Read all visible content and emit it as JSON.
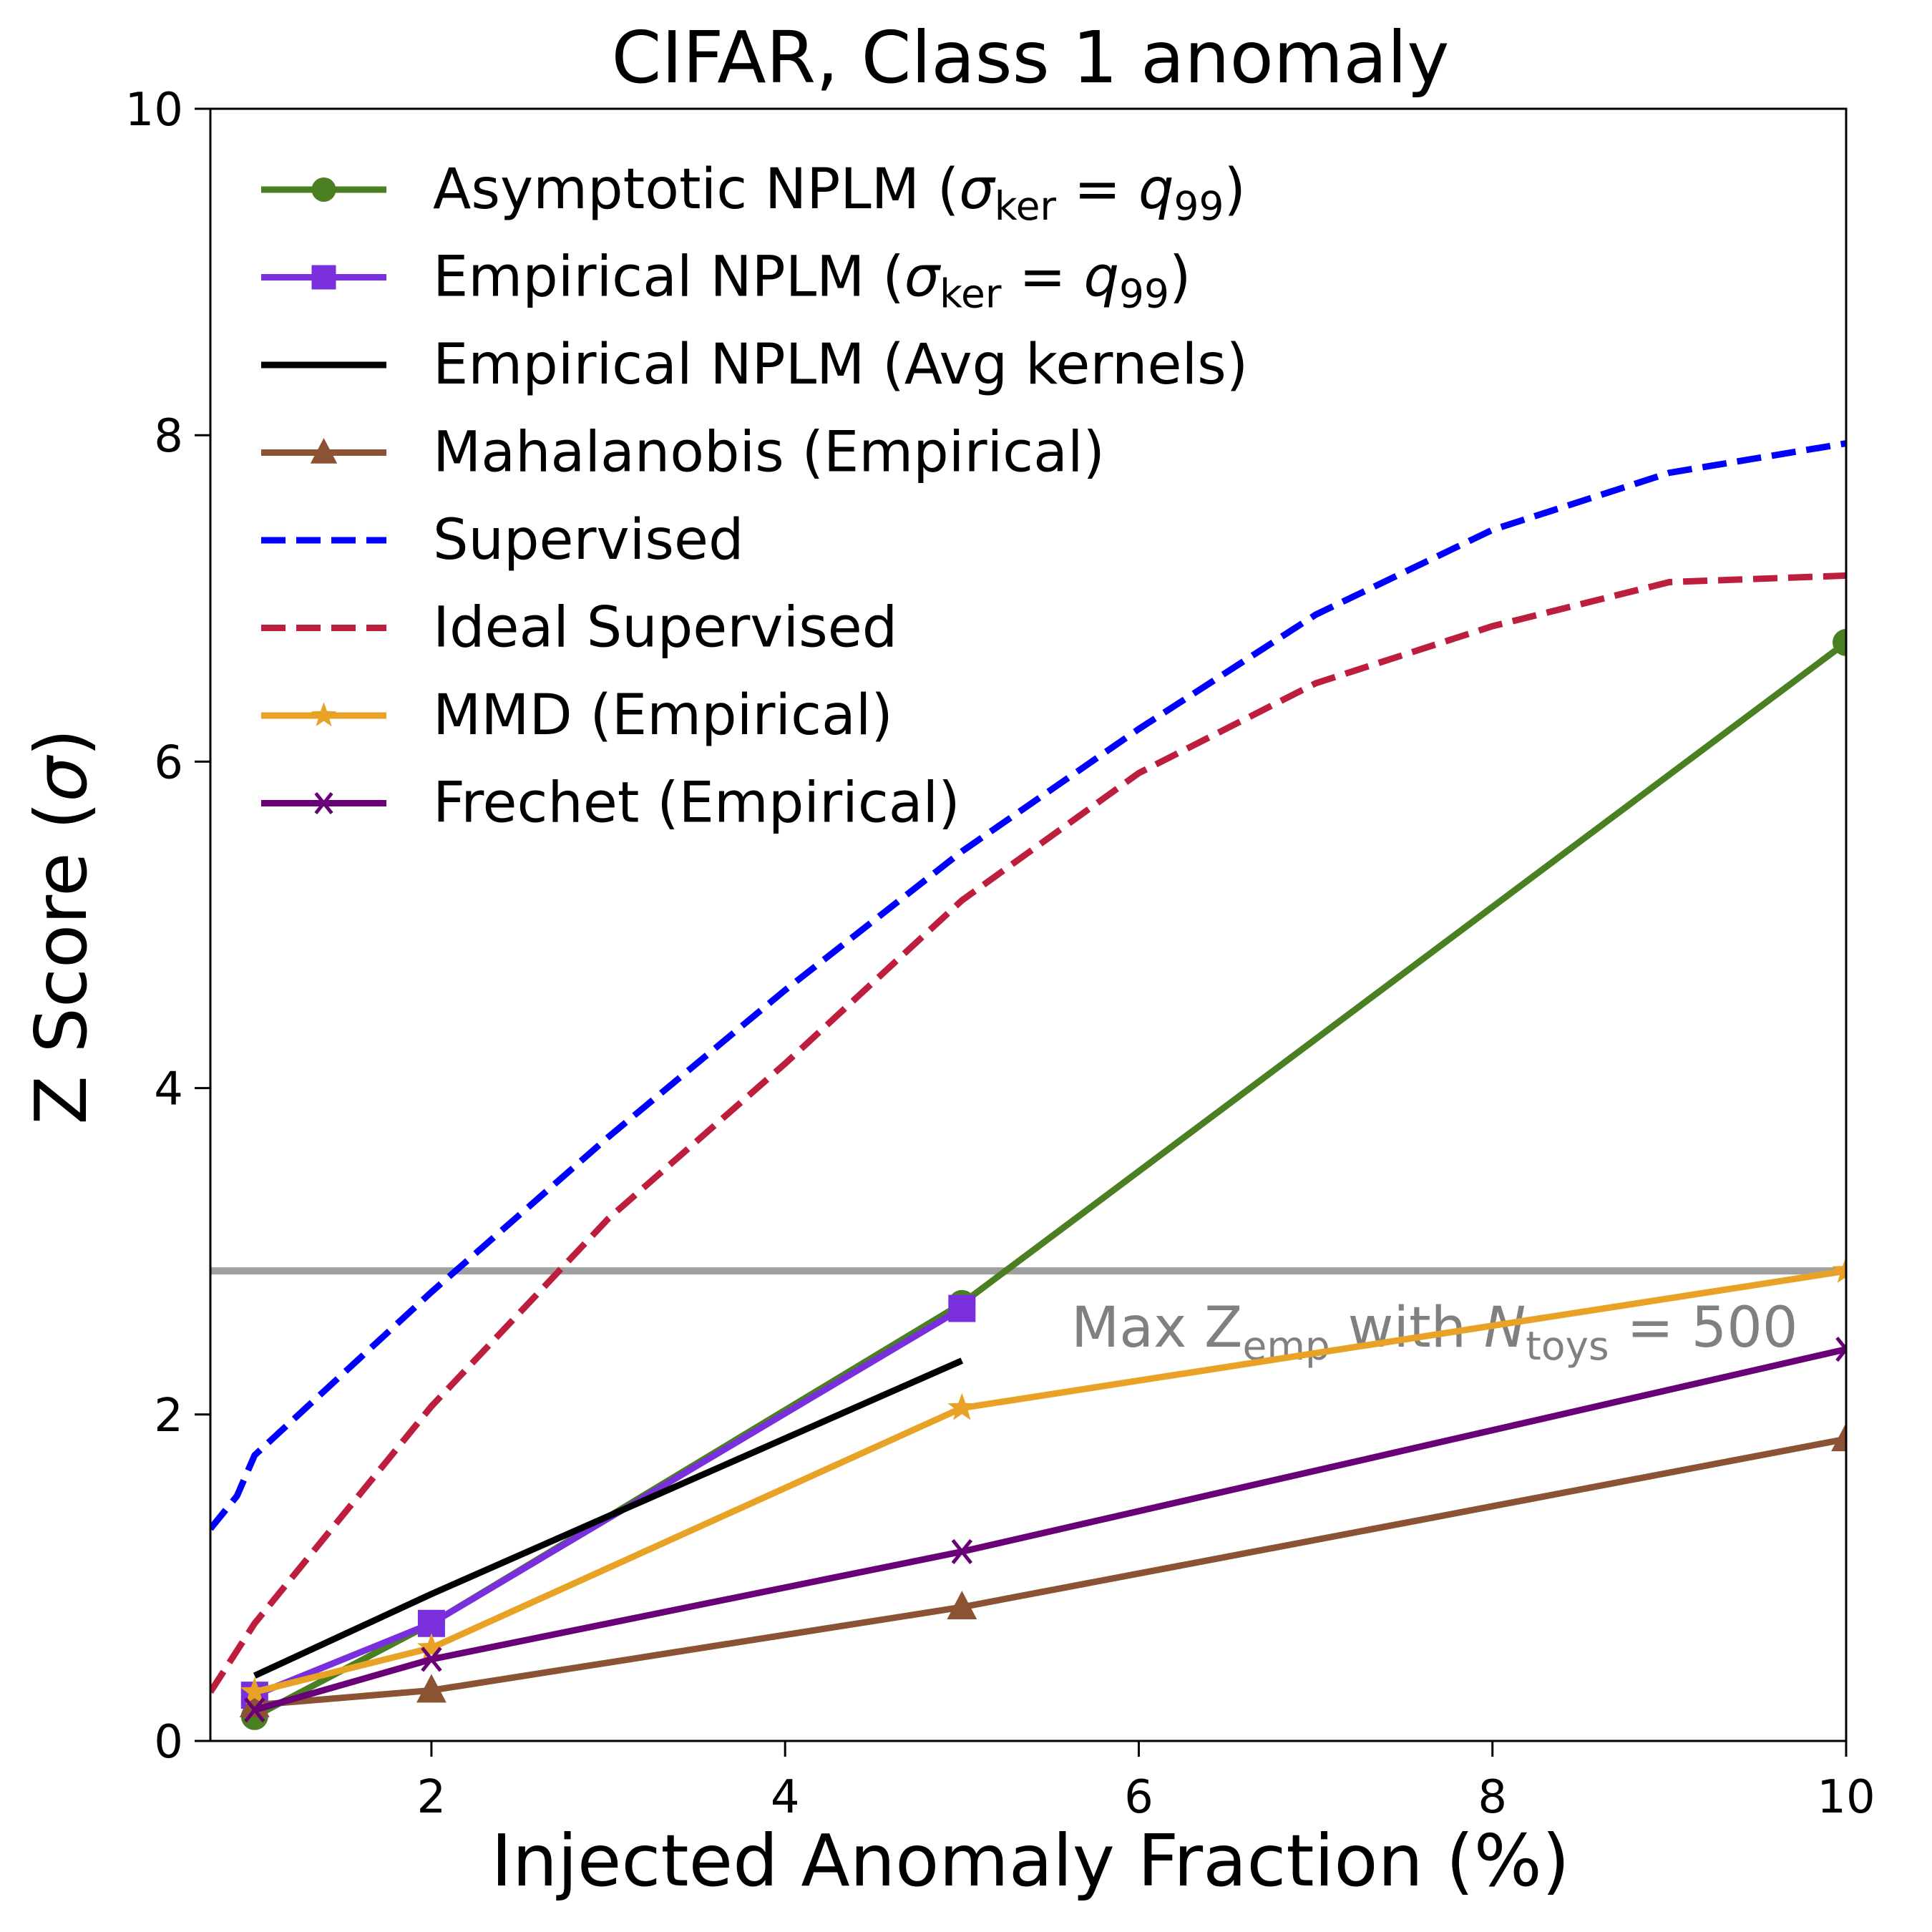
{
  "chart_data": {
    "type": "line",
    "title": "CIFAR, Class 1 anomaly",
    "xlabel": "Injected Anomaly Fraction (%)",
    "ylabel": "Z Score (σ)",
    "xlim": [
      0.75,
      10
    ],
    "ylim": [
      0,
      10
    ],
    "xticks": [
      2,
      4,
      6,
      8,
      10
    ],
    "yticks": [
      0,
      2,
      4,
      6,
      8,
      10
    ],
    "grid": false,
    "legend_position": "top-left",
    "series": [
      {
        "name": "Asymptotic NPLM (σker = q99)",
        "label_main": "Asymptotic NPLM (",
        "color": "#4a7f22",
        "style": "solid",
        "marker": "circle",
        "x": [
          1,
          2,
          5,
          10
        ],
        "y": [
          0.15,
          0.72,
          2.68,
          6.73
        ]
      },
      {
        "name": "Empirical NPLM (σker = q99)",
        "label_main": "Empirical NPLM (",
        "color": "#7a2fdd",
        "style": "solid",
        "marker": "square",
        "x": [
          1,
          2,
          5
        ],
        "y": [
          0.28,
          0.72,
          2.65
        ]
      },
      {
        "name": "Empirical NPLM (Avg kernels)",
        "color": "#000000",
        "style": "solid",
        "marker": "none",
        "x": [
          1,
          2,
          5
        ],
        "y": [
          0.4,
          0.9,
          2.33
        ]
      },
      {
        "name": "Mahalanobis (Empirical)",
        "color": "#8b5333",
        "style": "solid",
        "marker": "triangle",
        "x": [
          1,
          2,
          5,
          10
        ],
        "y": [
          0.22,
          0.31,
          0.82,
          1.85
        ]
      },
      {
        "name": "Supervised",
        "color": "#0000ff",
        "style": "dashed",
        "marker": "none",
        "x": [
          0.75,
          0.9,
          1,
          2,
          3,
          4,
          5,
          6,
          7,
          8,
          9,
          10
        ],
        "y": [
          1.3,
          1.5,
          1.75,
          2.75,
          3.7,
          4.6,
          5.45,
          6.2,
          6.9,
          7.42,
          7.77,
          7.95
        ]
      },
      {
        "name": "Ideal Supervised",
        "color": "#be1e3e",
        "style": "dashed",
        "marker": "none",
        "x": [
          0.75,
          1,
          2,
          3,
          4,
          5,
          6,
          7,
          8,
          9,
          10
        ],
        "y": [
          0.3,
          0.72,
          2.05,
          3.2,
          4.15,
          5.15,
          5.93,
          6.48,
          6.83,
          7.1,
          7.14
        ]
      },
      {
        "name": "MMD (Empirical)",
        "color": "#e8a327",
        "style": "solid",
        "marker": "star",
        "x": [
          1,
          2,
          5,
          10
        ],
        "y": [
          0.3,
          0.57,
          2.04,
          2.88
        ]
      },
      {
        "name": "Frechet (Empirical)",
        "color": "#6a0078",
        "style": "solid",
        "marker": "x",
        "x": [
          1,
          2,
          5,
          10
        ],
        "y": [
          0.19,
          0.5,
          1.16,
          2.4
        ]
      }
    ],
    "hline": {
      "y": 2.88,
      "color": "#a0a0a0"
    },
    "annotation": {
      "prefix": "Max Z",
      "sub1": "emp",
      "mid": " with ",
      "italic": "N",
      "sub2": "toys",
      "suffix": " = 500",
      "color": "#808080"
    },
    "legend_sigma": "σ",
    "legend_ker": "ker",
    "legend_eq": " = ",
    "legend_q": "q",
    "legend_99": "99",
    "legend_close": ")"
  }
}
